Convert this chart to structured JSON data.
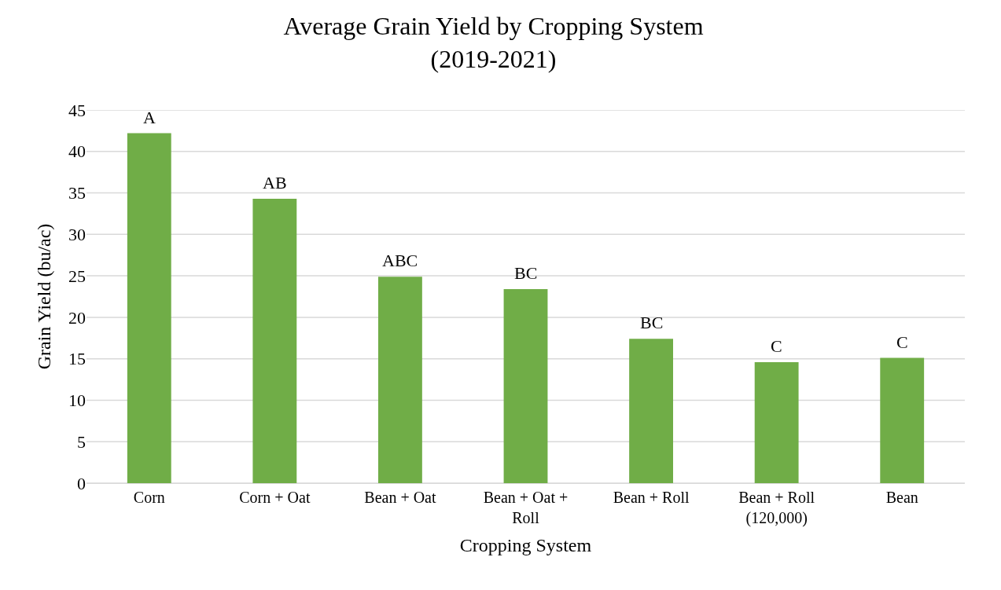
{
  "chart_data": {
    "type": "bar",
    "title": "Average Grain Yield by Cropping System",
    "subtitle": "(2019-2021)",
    "xlabel": "Cropping System",
    "ylabel": "Grain Yield (bu/ac)",
    "categories": [
      "Corn",
      "Corn + Oat",
      "Bean + Oat",
      "Bean + Oat + Roll",
      "Bean + Roll",
      "Bean + Roll (120,000)",
      "Bean"
    ],
    "values": [
      42.2,
      34.3,
      24.9,
      23.4,
      17.4,
      14.6,
      15.1
    ],
    "color": "#70ad47",
    "ylim": [
      0,
      45
    ],
    "yticks": [
      0,
      5,
      10,
      15,
      20,
      25,
      30,
      35,
      40,
      45
    ],
    "grid": "y",
    "annotations": [
      {
        "text": "A",
        "x": "Corn",
        "y": 42.2
      },
      {
        "text": "AB",
        "x": "Corn + Oat",
        "y": 34.3
      },
      {
        "text": "ABC",
        "x": "Bean + Oat",
        "y": 24.9
      },
      {
        "text": "BC",
        "x": "Bean + Oat + Roll",
        "y": 23.4
      },
      {
        "text": "BC",
        "x": "Bean + Roll",
        "y": 17.4
      },
      {
        "text": "C",
        "x": "Bean + Roll (120,000)",
        "y": 14.6
      },
      {
        "text": "C",
        "x": "Bean",
        "y": 15.1
      }
    ]
  }
}
